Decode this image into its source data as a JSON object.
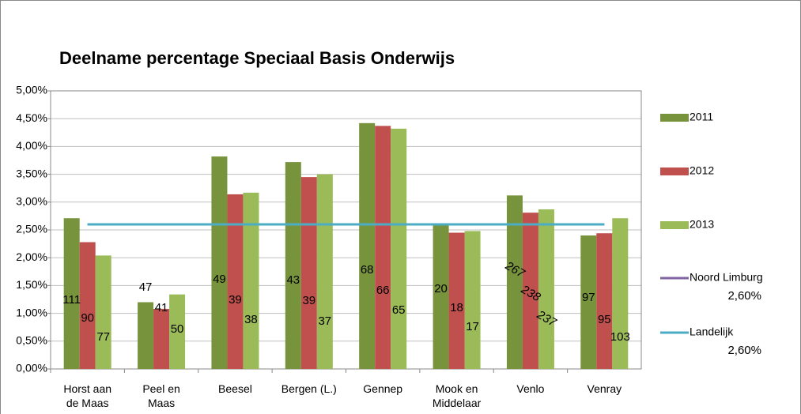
{
  "chart_data": {
    "type": "bar",
    "title": "Deelname percentage Speciaal Basis Onderwijs",
    "categories": [
      "Horst aan de Maas",
      "Peel en Maas",
      "Beesel",
      "Bergen (L.)",
      "Gennep",
      "Mook en Middelaar",
      "Venlo",
      "Venray"
    ],
    "series": [
      {
        "name": "2011",
        "color": "#77933c",
        "values": [
          2.71,
          1.2,
          3.82,
          3.72,
          4.42,
          2.6,
          3.12,
          2.4
        ],
        "counts": [
          111,
          47,
          49,
          43,
          68,
          20,
          267,
          97
        ]
      },
      {
        "name": "2012",
        "color": "#c0504d",
        "values": [
          2.28,
          1.08,
          3.14,
          3.45,
          4.37,
          2.45,
          2.81,
          2.44
        ],
        "counts": [
          90,
          41,
          39,
          39,
          66,
          18,
          238,
          95
        ]
      },
      {
        "name": "2013",
        "color": "#9bbb59",
        "values": [
          2.04,
          1.34,
          3.17,
          3.5,
          4.32,
          2.48,
          2.87,
          2.71
        ],
        "counts": [
          77,
          50,
          38,
          37,
          65,
          17,
          237,
          103
        ]
      }
    ],
    "reference_lines": [
      {
        "name": "Noord Limburg",
        "color": "#8064a2",
        "value": 2.6,
        "label": "2,60%"
      },
      {
        "name": "Landelijk",
        "color": "#4bacc6",
        "value": 2.6,
        "label": "2,60%"
      }
    ],
    "ylim": [
      0,
      5
    ],
    "yticks": [
      {
        "value": 0,
        "label": "0,00%"
      },
      {
        "value": 0.5,
        "label": "0,50%"
      },
      {
        "value": 1,
        "label": "1,00%"
      },
      {
        "value": 1.5,
        "label": "1,50%"
      },
      {
        "value": 2,
        "label": "2,00%"
      },
      {
        "value": 2.5,
        "label": "2,50%"
      },
      {
        "value": 3,
        "label": "3,00%"
      },
      {
        "value": 3.5,
        "label": "3,50%"
      },
      {
        "value": 4,
        "label": "4,00%"
      },
      {
        "value": 4.5,
        "label": "4,50%"
      },
      {
        "value": 5,
        "label": "5,00%"
      }
    ],
    "grid": true
  }
}
